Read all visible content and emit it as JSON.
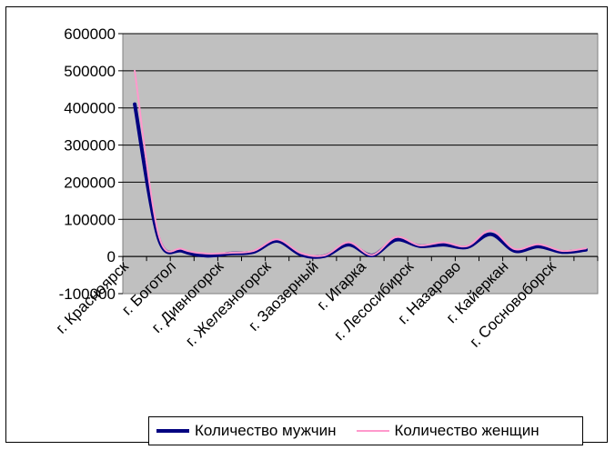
{
  "chart_data": {
    "type": "line",
    "title": "",
    "xlabel": "",
    "ylabel": "",
    "ylim": [
      -100000,
      600000
    ],
    "yticks": [
      -100000,
      0,
      100000,
      200000,
      300000,
      400000,
      500000,
      600000
    ],
    "grid": true,
    "legend_position": "bottom",
    "x_tick_labels": [
      "г. Красноярск",
      "г. Боготол",
      "г. Дивногорск",
      "г. Железногорск",
      "г. Заозерный",
      "г. Игарка",
      "г. Лесосибирск",
      "г. Назарово",
      "г. Кайеркан",
      "г. Сосновоборск"
    ],
    "x_tick_indices": [
      0,
      2,
      4,
      6,
      8,
      10,
      12,
      14,
      16,
      18
    ],
    "series": [
      {
        "name": "Количество мужчин",
        "color": "#000080",
        "values": [
          410000,
          50000,
          15000,
          2000,
          8000,
          12000,
          42000,
          5000,
          1000,
          32000,
          3000,
          45000,
          28000,
          32000,
          25000,
          60000,
          15000,
          27000,
          12000,
          18000
        ]
      },
      {
        "name": "Количество женщин",
        "color": "#ff99cc",
        "values": [
          500000,
          60000,
          20000,
          8000,
          10000,
          15000,
          46000,
          9000,
          3000,
          38000,
          4000,
          52000,
          30000,
          38000,
          28000,
          70000,
          20000,
          33000,
          15000,
          22000
        ]
      }
    ]
  }
}
